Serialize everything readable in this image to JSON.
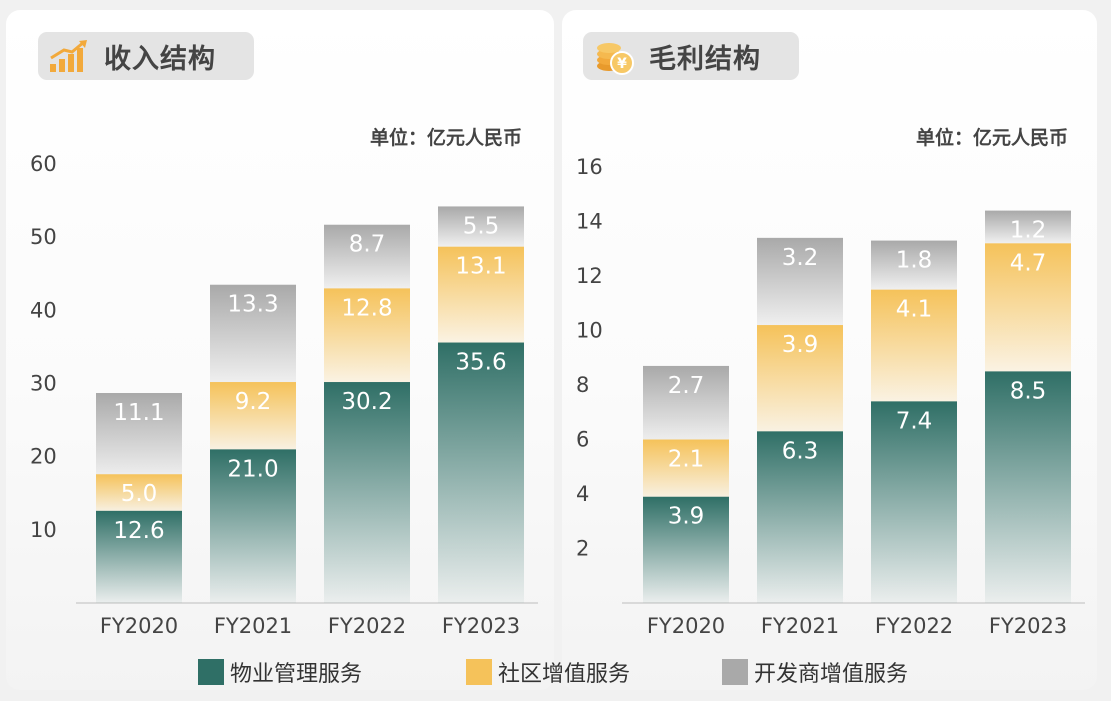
{
  "colors": {
    "property_mgmt": "#2f6f66",
    "community": "#f5c25a",
    "developer": "#a9a9a9",
    "title_icon": "#f2a93b"
  },
  "left_panel": {
    "title": "收入结构",
    "unit": "单位：亿元人民币",
    "icon": "rising-bar-chart-icon"
  },
  "right_panel": {
    "title": "毛利结构",
    "unit": "单位：亿元人民币",
    "icon": "coin-stack-yen-icon"
  },
  "legend": [
    "物业管理服务",
    "社区增值服务",
    "开发商增值服务"
  ],
  "chart_data": [
    {
      "type": "bar",
      "stacked": true,
      "title": "收入结构",
      "categories": [
        "FY2020",
        "FY2021",
        "FY2022",
        "FY2023"
      ],
      "series": [
        {
          "name": "物业管理服务",
          "values": [
            12.6,
            21.0,
            30.2,
            35.6
          ]
        },
        {
          "name": "社区增值服务",
          "values": [
            5.0,
            9.2,
            12.8,
            13.1
          ]
        },
        {
          "name": "开发商增值服务",
          "values": [
            11.1,
            13.3,
            8.7,
            5.5
          ]
        }
      ],
      "ylim": [
        0,
        60
      ],
      "yticks": [
        10,
        20,
        30,
        40,
        50,
        60
      ],
      "ylabel": "单位：亿元人民币",
      "grid": false,
      "legend": "bottom"
    },
    {
      "type": "bar",
      "stacked": true,
      "title": "毛利结构",
      "categories": [
        "FY2020",
        "FY2021",
        "FY2022",
        "FY2023"
      ],
      "series": [
        {
          "name": "物业管理服务",
          "values": [
            3.9,
            6.3,
            7.4,
            8.5
          ]
        },
        {
          "name": "社区增值服务",
          "values": [
            2.1,
            3.9,
            4.1,
            4.7
          ]
        },
        {
          "name": "开发商增值服务",
          "values": [
            2.7,
            3.2,
            1.8,
            1.2
          ]
        }
      ],
      "ylim": [
        0,
        16
      ],
      "yticks": [
        2,
        4,
        6,
        8,
        10,
        12,
        14,
        16
      ],
      "ylabel": "单位：亿元人民币",
      "grid": false,
      "legend": "bottom"
    }
  ]
}
